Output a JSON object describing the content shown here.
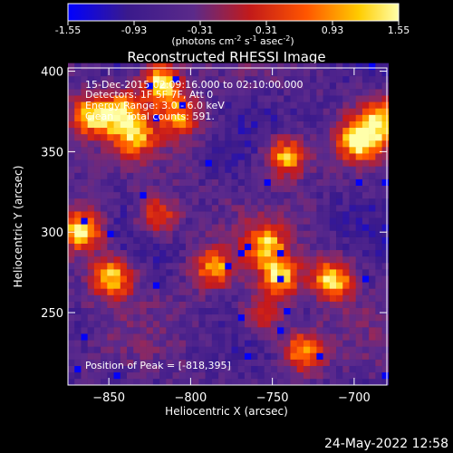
{
  "colorbar": {
    "tick_labels": [
      "-1.55",
      "-0.93",
      "-0.31",
      "0.31",
      "0.93",
      "1.55"
    ],
    "tick_values": [
      -1.55,
      -0.93,
      -0.31,
      0.31,
      0.93,
      1.55
    ],
    "range": [
      -1.55,
      1.55
    ],
    "unit_main": "(photons cm",
    "unit_sup1": "-2",
    "unit_mid1": " s",
    "unit_sup2": "-1",
    "unit_mid2": " asec",
    "unit_sup3": "-2",
    "unit_end": ")",
    "colors": [
      "#0000ff",
      "#3a1a8c",
      "#5b2a8a",
      "#c21a1a",
      "#ff5500",
      "#ffcc00",
      "#ffffaa"
    ]
  },
  "chart_data": {
    "type": "heatmap",
    "title": "Reconstructed RHESSI Image",
    "xlabel": "Heliocentric X (arcsec)",
    "ylabel": "Heliocentric Y (arcsec)",
    "xlim": [
      -875,
      -680
    ],
    "ylim": [
      205,
      402
    ],
    "x_ticks": [
      -850,
      -800,
      -750,
      -700
    ],
    "x_tick_labels": [
      "−850",
      "−800",
      "−750",
      "−700"
    ],
    "y_ticks": [
      250,
      300,
      350,
      400
    ],
    "y_tick_labels": [
      "250",
      "300",
      "350",
      "400"
    ],
    "annotations": [
      "15-Dec-2015 02:09:16.000 to 02:10:00.000",
      "Detectors: 1F 5F 7F, Att 0",
      "Energy Range: 3.0 - 6.0 keV",
      "Clean    Total counts: 591."
    ],
    "peak_label": "Position of Peak = [-818,395]",
    "peak_position": [
      -818,
      395
    ],
    "sources": [
      {
        "x": -818,
        "y": 393,
        "peak": 1.55
      },
      {
        "x": -862,
        "y": 372,
        "peak": 1.2
      },
      {
        "x": -843,
        "y": 375,
        "peak": 1.0
      },
      {
        "x": -835,
        "y": 360,
        "peak": 0.9
      },
      {
        "x": -806,
        "y": 372,
        "peak": 0.85
      },
      {
        "x": -742,
        "y": 347,
        "peak": 1.35
      },
      {
        "x": -697,
        "y": 357,
        "peak": 1.5
      },
      {
        "x": -866,
        "y": 301,
        "peak": 1.5
      },
      {
        "x": -820,
        "y": 310,
        "peak": 0.9
      },
      {
        "x": -848,
        "y": 272,
        "peak": 1.35
      },
      {
        "x": -786,
        "y": 278,
        "peak": 1.1
      },
      {
        "x": -746,
        "y": 272,
        "peak": 1.3
      },
      {
        "x": -754,
        "y": 293,
        "peak": 0.9
      },
      {
        "x": -713,
        "y": 271,
        "peak": 1.45
      },
      {
        "x": -731,
        "y": 226,
        "peak": 1.2
      },
      {
        "x": -683,
        "y": 370,
        "peak": 1.0
      },
      {
        "x": -756,
        "y": 248,
        "peak": 0.7
      }
    ],
    "background": -0.6
  },
  "footer": {
    "date": "24-May-2022 12:58"
  }
}
